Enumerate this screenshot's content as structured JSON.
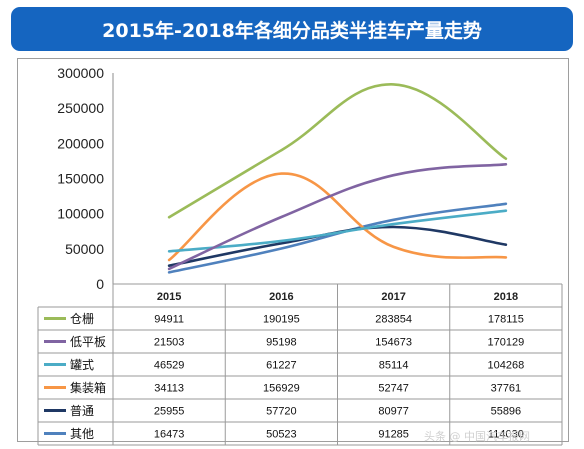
{
  "title": "2015年-2018年各细分品类半挂车产量走势",
  "watermark": "头条 @ 中国汽车报网",
  "chart_data": {
    "type": "line",
    "title": "2015年-2018年各细分品类半挂车产量走势",
    "categories": [
      "2015",
      "2016",
      "2017",
      "2018"
    ],
    "ylim": [
      0,
      300000
    ],
    "yticks": [
      0,
      50000,
      100000,
      150000,
      200000,
      250000,
      300000
    ],
    "grid": false,
    "legend": "data-table",
    "series": [
      {
        "name": "仓栅",
        "color": "#9BBB59",
        "values": [
          94911,
          190195,
          283854,
          178115
        ]
      },
      {
        "name": "低平板",
        "color": "#8064A2",
        "values": [
          21503,
          95198,
          154673,
          170129
        ]
      },
      {
        "name": "罐式",
        "color": "#4BACC6",
        "values": [
          46529,
          61227,
          85114,
          104268
        ]
      },
      {
        "name": "集装箱",
        "color": "#F79646",
        "values": [
          34113,
          156929,
          52747,
          37761
        ]
      },
      {
        "name": "普通",
        "color": "#1F3864",
        "values": [
          25955,
          57720,
          80977,
          55896
        ]
      },
      {
        "name": "其他",
        "color": "#4F81BD",
        "values": [
          16473,
          50523,
          91285,
          114030
        ]
      }
    ]
  }
}
